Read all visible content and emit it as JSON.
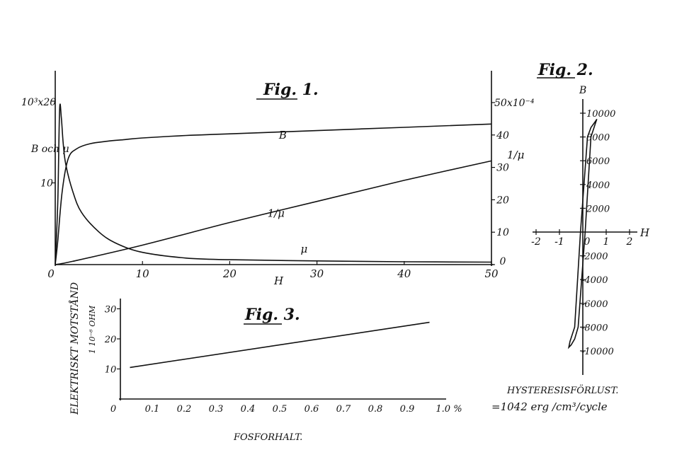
{
  "chart_data": [
    {
      "type": "line",
      "title": "Fig. 1.",
      "xlabel": "H",
      "ylabel_left": "B och μ",
      "ylabel_right": "1/μ",
      "left_axis_top_label": "10³x20",
      "right_axis_top_label": "50x10⁻⁴",
      "x_ticks": [
        "0",
        "10",
        "20",
        "30",
        "40",
        "50"
      ],
      "left_ticks": [
        "0",
        "10"
      ],
      "right_ticks": [
        "0",
        "10",
        "20",
        "30",
        "40"
      ],
      "xlim": [
        0,
        50
      ],
      "ylim_left": [
        0,
        20
      ],
      "ylim_right": [
        0,
        50
      ],
      "series": [
        {
          "name": "B",
          "axis": "left",
          "x": [
            0,
            0.3,
            0.8,
            1.5,
            2.5,
            4,
            6,
            8,
            10,
            15,
            20,
            30,
            40,
            50
          ],
          "y": [
            0,
            3,
            9,
            13,
            14.2,
            14.8,
            15.1,
            15.3,
            15.5,
            15.8,
            16,
            16.4,
            16.8,
            17.2
          ]
        },
        {
          "name": "μ",
          "axis": "left",
          "x": [
            0,
            0.3,
            0.5,
            0.7,
            0.9,
            1.2,
            2,
            3,
            5,
            7,
            10,
            15,
            20,
            30,
            40,
            50
          ],
          "y": [
            0,
            8,
            19,
            18,
            15,
            12.3,
            9,
            6.4,
            4,
            2.6,
            1.5,
            0.8,
            0.6,
            0.45,
            0.35,
            0.3
          ]
        },
        {
          "name": "1/μ",
          "axis": "right",
          "x": [
            0,
            2,
            10,
            20,
            30,
            40,
            50
          ],
          "y": [
            0,
            1,
            6,
            13,
            19.5,
            26,
            32
          ]
        }
      ]
    },
    {
      "type": "line",
      "title": "Fig. 2.",
      "xlabel": "H",
      "ylabel": "B",
      "x_ticks": [
        "-2",
        "-1",
        "0",
        "1",
        "2"
      ],
      "y_ticks_pos": [
        "10000",
        "8000",
        "6000",
        "4000",
        "2000"
      ],
      "y_ticks_neg": [
        "-2000",
        "-4000",
        "-6000",
        "-8000",
        "-10000"
      ],
      "xlim": [
        -2.5,
        2.5
      ],
      "ylim": [
        -11500,
        11000
      ],
      "annotation": [
        "HYSTERESISFÖRLUST.",
        "=1042 erg /cm³/cycle"
      ],
      "series": [
        {
          "name": "hysteresis loop",
          "x": [
            0.6,
            0.5,
            0.35,
            0.2,
            -0.1,
            -0.35,
            -0.55,
            -0.6,
            -0.5,
            -0.35,
            -0.2,
            0.1,
            0.35,
            0.55,
            0.6
          ],
          "y": [
            9500,
            9200,
            8800,
            8000,
            0,
            -8000,
            -9200,
            -9700,
            -9500,
            -9000,
            -8000,
            0,
            8000,
            9200,
            9500
          ]
        }
      ]
    },
    {
      "type": "line",
      "title": "Fig. 3.",
      "xlabel": "FOSFORHALT.",
      "ylabel": "ELEKTRISKT MOTSTÅND",
      "ylabel2": "1 10⁻⁶ OHM",
      "x_ticks": [
        "0",
        "0.1",
        "0.2",
        "0.3",
        "0.4",
        "0.5",
        "0.6",
        "0.7",
        "0.8",
        "0.9",
        "1.0 %"
      ],
      "y_ticks": [
        "10",
        "20",
        "30"
      ],
      "xlim": [
        0,
        1.0
      ],
      "ylim": [
        0,
        32
      ],
      "series": [
        {
          "x": [
            0.03,
            0.97
          ],
          "y": [
            10.5,
            25.5
          ]
        }
      ]
    }
  ]
}
